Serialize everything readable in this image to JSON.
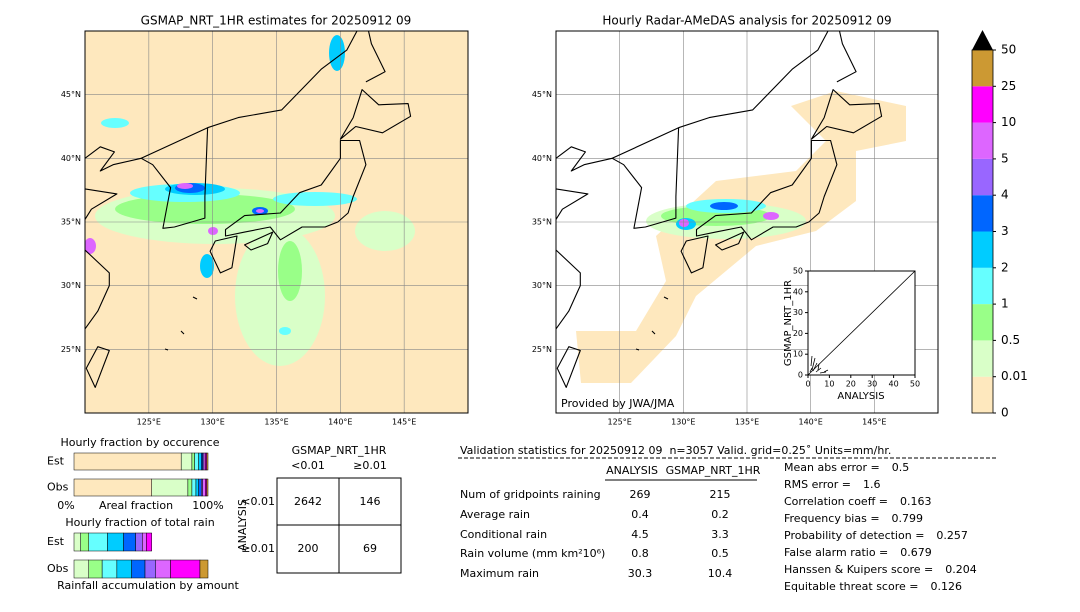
{
  "left_map": {
    "title": "GSMAP_NRT_1HR estimates for 20250912 09",
    "xlim": [
      120,
      150
    ],
    "ylim": [
      20,
      50
    ],
    "lat_ticks": [
      {
        "value": 45,
        "label": "45°N"
      },
      {
        "value": 40,
        "label": "40°N"
      },
      {
        "value": 35,
        "label": "35°N"
      },
      {
        "value": 30,
        "label": "30°N"
      },
      {
        "value": 25,
        "label": "25°N"
      }
    ],
    "lon_ticks": [
      {
        "value": 125,
        "label": "125°E"
      },
      {
        "value": 130,
        "label": "130°E"
      },
      {
        "value": 135,
        "label": "135°E"
      },
      {
        "value": 140,
        "label": "140°E"
      },
      {
        "value": 145,
        "label": "145°E"
      }
    ]
  },
  "right_map": {
    "title": "Hourly Radar-AMeDAS analysis for 20250912 09",
    "credit": "Provided by JWA/JMA",
    "xlim": [
      120,
      150
    ],
    "ylim": [
      20,
      50
    ],
    "lat_ticks": [
      {
        "value": 45,
        "label": "45°N"
      },
      {
        "value": 40,
        "label": "40°N"
      },
      {
        "value": 35,
        "label": "35°N"
      },
      {
        "value": 30,
        "label": "30°N"
      },
      {
        "value": 25,
        "label": "25°N"
      }
    ],
    "lon_ticks": [
      {
        "value": 125,
        "label": "125°E"
      },
      {
        "value": 130,
        "label": "130°E"
      },
      {
        "value": 135,
        "label": "135°E"
      },
      {
        "value": 140,
        "label": "140°E"
      },
      {
        "value": 145,
        "label": "145°E"
      }
    ]
  },
  "scatter": {
    "xlabel": "ANALYSIS",
    "ylabel": "GSMAP_NRT_1HR",
    "lim": [
      0,
      50
    ],
    "ticks": [
      0,
      10,
      20,
      30,
      40,
      50
    ]
  },
  "colorbar": {
    "levels": [
      0,
      0.01,
      0.5,
      1,
      2,
      3,
      4,
      5,
      10,
      25,
      50
    ],
    "colors": [
      "#fee8be",
      "#d9ffc8",
      "#99ff88",
      "#66ffff",
      "#00ccff",
      "#0066ff",
      "#9966ff",
      "#dd66ff",
      "#ff00ff",
      "#cc9933"
    ],
    "extend_color": "#000000"
  },
  "fraction_occurrence": {
    "title": "Hourly fraction by occurence",
    "rows": [
      {
        "name": "Est",
        "values": [
          80,
          8,
          2,
          3,
          2,
          1,
          1,
          1,
          1,
          1
        ]
      },
      {
        "name": "Obs",
        "values": [
          58,
          27,
          3,
          3,
          2,
          2,
          1,
          2,
          1,
          1
        ]
      }
    ],
    "axis_left": "0%",
    "axis_label": "Areal fraction",
    "axis_right": "100%"
  },
  "fraction_amount": {
    "title": "Hourly fraction of total rain",
    "rows": [
      {
        "name": "Est",
        "values": [
          0,
          5,
          6,
          14,
          12,
          9,
          5,
          3,
          4,
          0
        ]
      },
      {
        "name": "Obs",
        "values": [
          0,
          11,
          10,
          11,
          11,
          10,
          8,
          11,
          22,
          6
        ]
      }
    ],
    "footer": "Rainfall accumulation by amount"
  },
  "contingency": {
    "title": "GSMAP_NRT_1HR",
    "col_headers": [
      "<0.01",
      "≥0.01"
    ],
    "row_axis": "ANALYSIS",
    "row_headers": [
      "<0.01",
      "≥0.01"
    ],
    "cells": [
      [
        2642,
        146
      ],
      [
        200,
        69
      ]
    ]
  },
  "validation": {
    "header": "Validation statistics for 20250912 09  n=3057 Valid. grid=0.25˚ Units=mm/hr.",
    "columns": [
      "ANALYSIS",
      "GSMAP_NRT_1HR"
    ],
    "rows": [
      {
        "label": "Num of gridpoints raining",
        "values": [
          269,
          215
        ]
      },
      {
        "label": "Average rain",
        "values": [
          0.4,
          0.2
        ]
      },
      {
        "label": "Conditional rain",
        "values": [
          4.5,
          3.3
        ]
      },
      {
        "label": "Rain volume (mm km²10⁶)",
        "values": [
          0.8,
          0.5
        ]
      },
      {
        "label": "Maximum rain",
        "values": [
          30.3,
          10.4
        ]
      }
    ]
  },
  "scores": [
    {
      "label": "Mean abs error =",
      "value": 0.5
    },
    {
      "label": "RMS error =",
      "value": 1.6
    },
    {
      "label": "Correlation coeff =",
      "value": 0.163
    },
    {
      "label": "Frequency bias =",
      "value": 0.799
    },
    {
      "label": "Probability of detection =",
      "value": 0.257
    },
    {
      "label": "False alarm ratio =",
      "value": 0.679
    },
    {
      "label": "Hanssen & Kuipers score =",
      "value": 0.204
    },
    {
      "label": "Equitable threat score =",
      "value": 0.126
    }
  ]
}
